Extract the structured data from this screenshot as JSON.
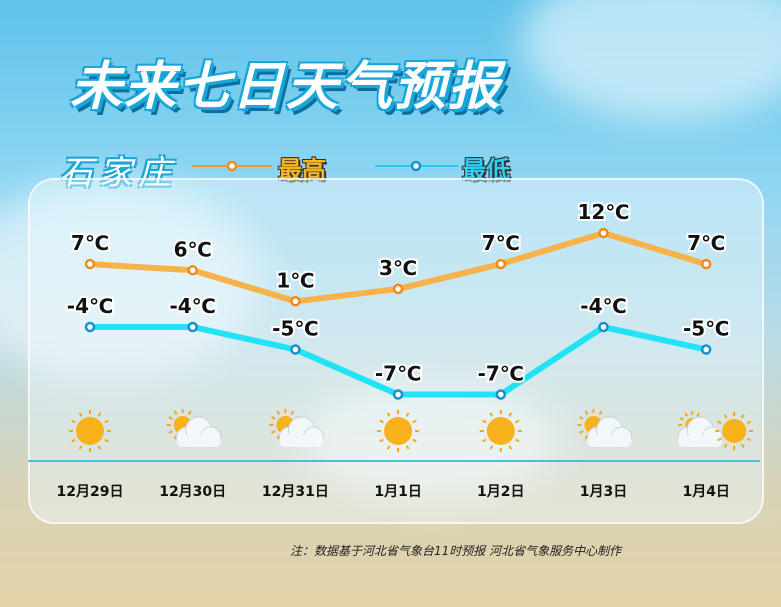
{
  "title": "未来七日天气预报",
  "city": "石家庄",
  "legend": {
    "high": "最高",
    "low": "最低"
  },
  "colors": {
    "high": "#f7b24a",
    "low": "#22e2f5",
    "high_dot": "#f08a1c",
    "low_dot": "#1a8fd0"
  },
  "note": "注：数据基于河北省气象台11时预报 河北省气象服务中心制作",
  "chart_data": {
    "type": "line",
    "categories": [
      "12月29日",
      "12月30日",
      "12月31日",
      "1月1日",
      "1月2日",
      "1月3日",
      "1月4日"
    ],
    "series": [
      {
        "name": "最高",
        "values": [
          7,
          6,
          1,
          3,
          7,
          12,
          7
        ],
        "labels": [
          "7℃",
          "6℃",
          "1℃",
          "3℃",
          "7℃",
          "12℃",
          "7℃"
        ]
      },
      {
        "name": "最低",
        "values": [
          -4,
          -4,
          -5,
          -7,
          -7,
          -4,
          -5
        ],
        "labels": [
          "-4℃",
          "-4℃",
          "-5℃",
          "-7℃",
          "-7℃",
          "-4℃",
          "-5℃"
        ]
      }
    ],
    "weather_icons": [
      "sunny",
      "partly-cloudy",
      "partly-cloudy",
      "sunny",
      "sunny",
      "partly-cloudy",
      "partly-cloudy-to-sunny"
    ],
    "grid": false
  }
}
